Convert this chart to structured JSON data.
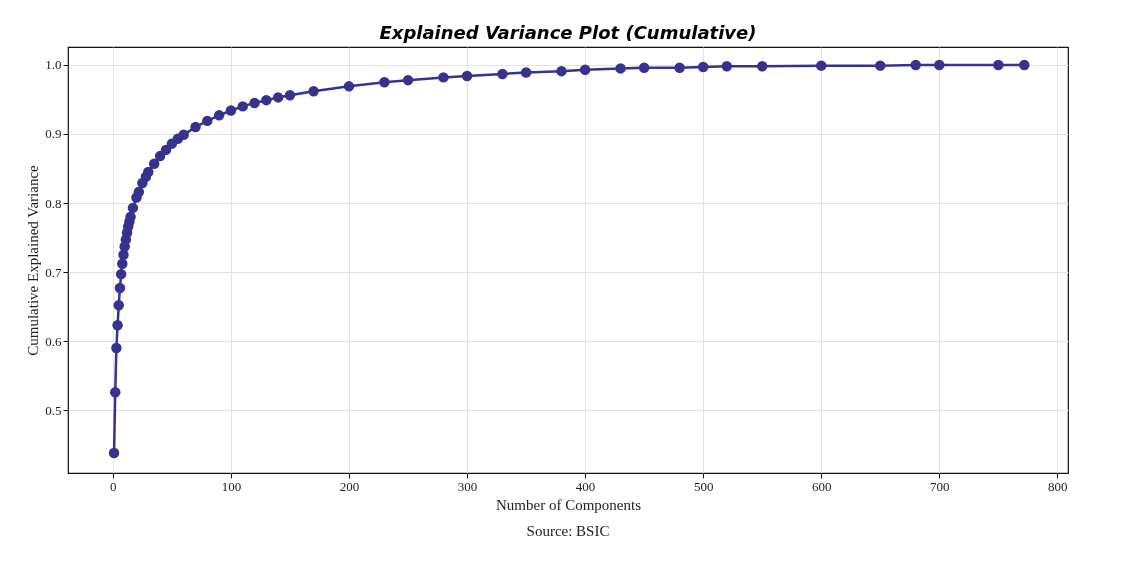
{
  "chart_data": {
    "type": "line",
    "title": "Explained Variance Plot (Cumulative)",
    "xlabel": "Number of Components",
    "ylabel": "Cumulative Explained Variance",
    "annotations": [
      "Source: BSIC"
    ],
    "x": [
      1,
      2,
      3,
      4,
      5,
      6,
      7,
      8,
      9,
      10,
      11,
      12,
      13,
      14,
      15,
      17,
      20,
      22,
      25,
      28,
      30,
      35,
      40,
      45,
      50,
      55,
      60,
      70,
      80,
      90,
      100,
      110,
      120,
      130,
      140,
      150,
      170,
      200,
      230,
      250,
      280,
      300,
      330,
      350,
      380,
      400,
      430,
      450,
      480,
      500,
      520,
      550,
      600,
      650,
      680,
      700,
      750,
      772
    ],
    "values": [
      0.438,
      0.526,
      0.59,
      0.623,
      0.652,
      0.677,
      0.697,
      0.712,
      0.725,
      0.737,
      0.747,
      0.757,
      0.766,
      0.773,
      0.78,
      0.793,
      0.808,
      0.816,
      0.829,
      0.838,
      0.845,
      0.857,
      0.868,
      0.877,
      0.886,
      0.893,
      0.899,
      0.91,
      0.919,
      0.927,
      0.934,
      0.94,
      0.945,
      0.949,
      0.953,
      0.956,
      0.962,
      0.969,
      0.975,
      0.978,
      0.982,
      0.984,
      0.987,
      0.989,
      0.991,
      0.993,
      0.995,
      0.996,
      0.996,
      0.997,
      0.998,
      0.998,
      0.999,
      0.999,
      1.0,
      1.0,
      1.0,
      1.0
    ],
    "color": "#36338f",
    "marker": "circle",
    "line_style": "solid",
    "grid": true,
    "xlim": [
      -38,
      809
    ],
    "ylim": [
      0.409,
      1.026
    ],
    "xticks": [
      0,
      100,
      200,
      300,
      400,
      500,
      600,
      700,
      800
    ],
    "yticks": [
      0.5,
      0.6,
      0.7,
      0.8,
      0.9,
      {
        "value": 1,
        "label": "1.0"
      }
    ]
  }
}
